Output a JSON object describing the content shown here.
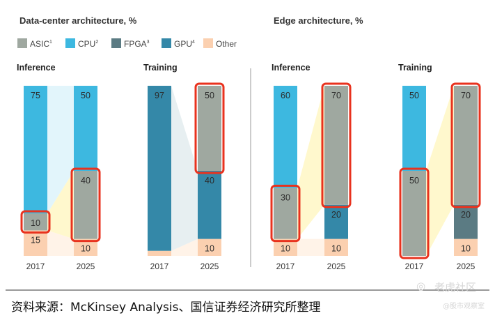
{
  "chart_data": {
    "type": "bar",
    "stacked": true,
    "unit": "%",
    "legend": [
      {
        "key": "asic",
        "label": "ASIC",
        "sup": "1",
        "color": "#9fa8a0"
      },
      {
        "key": "cpu",
        "label": "CPU",
        "sup": "2",
        "color": "#3db8e0"
      },
      {
        "key": "fpga",
        "label": "FPGA",
        "sup": "3",
        "color": "#5b7b83"
      },
      {
        "key": "gpu",
        "label": "GPU",
        "sup": "4",
        "color": "#3488a8"
      },
      {
        "key": "other",
        "label": "Other",
        "sup": "",
        "color": "#fbd0b0"
      }
    ],
    "sections": [
      {
        "title": "Data-center architecture",
        "unit": "%",
        "panels": [
          {
            "title": "Inference",
            "bars": [
              {
                "year": "2017",
                "segments": [
                  {
                    "key": "other",
                    "value": 15,
                    "label": "15"
                  },
                  {
                    "key": "asic",
                    "value": 10,
                    "label": "10",
                    "highlight": true
                  },
                  {
                    "key": "cpu",
                    "value": 75,
                    "label": "75"
                  }
                ]
              },
              {
                "year": "2025",
                "segments": [
                  {
                    "key": "other",
                    "value": 10,
                    "label": "10"
                  },
                  {
                    "key": "asic",
                    "value": 40,
                    "label": "40",
                    "highlight": true
                  },
                  {
                    "key": "cpu",
                    "value": 50,
                    "label": "50"
                  }
                ]
              }
            ]
          },
          {
            "title": "Training",
            "bars": [
              {
                "year": "2017",
                "segments": [
                  {
                    "key": "other",
                    "value": 3,
                    "label": ""
                  },
                  {
                    "key": "gpu",
                    "value": 97,
                    "label": "97"
                  }
                ]
              },
              {
                "year": "2025",
                "segments": [
                  {
                    "key": "other",
                    "value": 10,
                    "label": "10"
                  },
                  {
                    "key": "gpu",
                    "value": 40,
                    "label": "40"
                  },
                  {
                    "key": "asic",
                    "value": 50,
                    "label": "50",
                    "highlight": true
                  }
                ]
              }
            ]
          }
        ]
      },
      {
        "title": "Edge architecture",
        "unit": "%",
        "panels": [
          {
            "title": "Inference",
            "bars": [
              {
                "year": "2017",
                "segments": [
                  {
                    "key": "other",
                    "value": 10,
                    "label": "10"
                  },
                  {
                    "key": "asic",
                    "value": 30,
                    "label": "30",
                    "highlight": true
                  },
                  {
                    "key": "cpu",
                    "value": 60,
                    "label": "60"
                  }
                ]
              },
              {
                "year": "2025",
                "segments": [
                  {
                    "key": "other",
                    "value": 10,
                    "label": "10"
                  },
                  {
                    "key": "gpu",
                    "value": 20,
                    "label": "20"
                  },
                  {
                    "key": "asic",
                    "value": 70,
                    "label": "70",
                    "highlight": true
                  }
                ]
              }
            ]
          },
          {
            "title": "Training",
            "bars": [
              {
                "year": "2017",
                "segments": [
                  {
                    "key": "asic",
                    "value": 50,
                    "label": "50",
                    "highlight": true
                  },
                  {
                    "key": "cpu",
                    "value": 50,
                    "label": "50"
                  }
                ]
              },
              {
                "year": "2025",
                "segments": [
                  {
                    "key": "other",
                    "value": 10,
                    "label": "10"
                  },
                  {
                    "key": "fpga",
                    "value": 20,
                    "label": "20"
                  },
                  {
                    "key": "asic",
                    "value": 70,
                    "label": "70",
                    "highlight": true
                  }
                ]
              }
            ]
          }
        ]
      }
    ]
  },
  "highlight_color": "#e8321e",
  "source": "资料来源：McKinsey Analysis、国信证券经济研究所整理",
  "watermark": {
    "main": "老虎社区",
    "sub": "@股市观察室"
  }
}
